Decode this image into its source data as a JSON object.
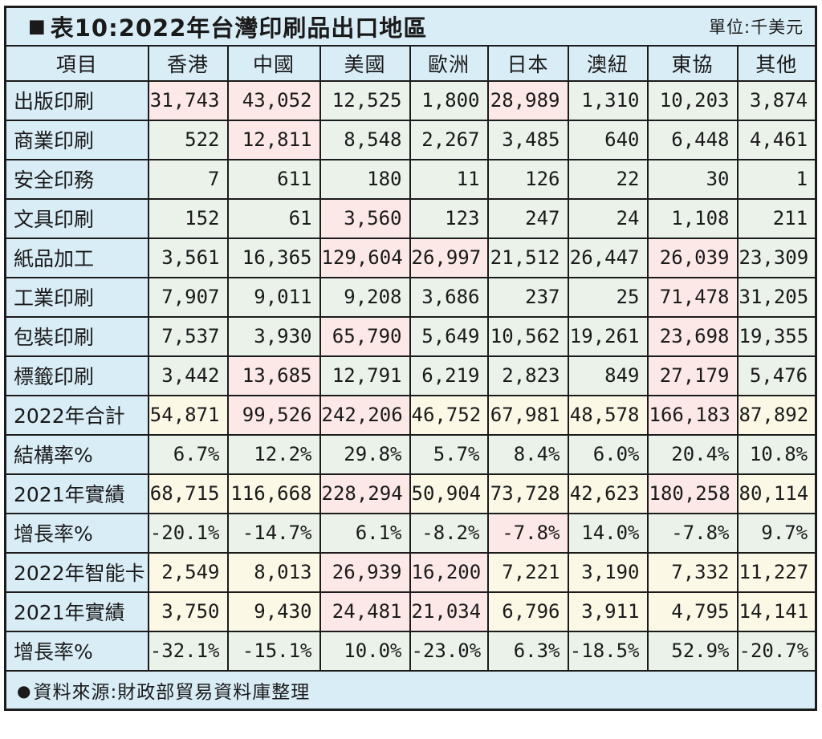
{
  "header": {
    "marker": "■",
    "title": "表10:2022年台灣印刷品出口地區",
    "unit": "單位:千美元"
  },
  "chart_data": {
    "type": "table",
    "title": "2022年台灣印刷品出口地區",
    "unit": "千美元",
    "columns": [
      "項目",
      "香港",
      "中國",
      "美國",
      "歐洲",
      "日本",
      "澳紐",
      "東協",
      "其他"
    ],
    "rows": [
      {
        "label": "出版印刷",
        "bg": "green",
        "pink": [
          0,
          1,
          4
        ],
        "values": [
          "31,743",
          "43,052",
          "12,525",
          "1,800",
          "28,989",
          "1,310",
          "10,203",
          "3,874"
        ]
      },
      {
        "label": "商業印刷",
        "bg": "green",
        "pink": [
          1
        ],
        "values": [
          "522",
          "12,811",
          "8,548",
          "2,267",
          "3,485",
          "640",
          "6,448",
          "4,461"
        ]
      },
      {
        "label": "安全印務",
        "bg": "green",
        "pink": [],
        "values": [
          "7",
          "611",
          "180",
          "11",
          "126",
          "22",
          "30",
          "1"
        ]
      },
      {
        "label": "文具印刷",
        "bg": "green",
        "pink": [
          2
        ],
        "values": [
          "152",
          "61",
          "3,560",
          "123",
          "247",
          "24",
          "1,108",
          "211"
        ]
      },
      {
        "label": "紙品加工",
        "bg": "green",
        "pink": [
          2,
          3,
          6
        ],
        "values": [
          "3,561",
          "16,365",
          "129,604",
          "26,997",
          "21,512",
          "26,447",
          "26,039",
          "23,309"
        ]
      },
      {
        "label": "工業印刷",
        "bg": "green",
        "pink": [
          6
        ],
        "values": [
          "7,907",
          "9,011",
          "9,208",
          "3,686",
          "237",
          "25",
          "71,478",
          "31,205"
        ]
      },
      {
        "label": "包裝印刷",
        "bg": "green",
        "pink": [
          2,
          6
        ],
        "values": [
          "7,537",
          "3,930",
          "65,790",
          "5,649",
          "10,562",
          "19,261",
          "23,698",
          "19,355"
        ]
      },
      {
        "label": "標籤印刷",
        "bg": "green",
        "pink": [
          1,
          6
        ],
        "values": [
          "3,442",
          "13,685",
          "12,791",
          "6,219",
          "2,823",
          "849",
          "27,179",
          "5,476"
        ]
      },
      {
        "label": "2022年合計",
        "bg": "cream",
        "pink": [
          1,
          2,
          6
        ],
        "values": [
          "54,871",
          "99,526",
          "242,206",
          "46,752",
          "67,981",
          "48,578",
          "166,183",
          "87,892"
        ]
      },
      {
        "label": "結構率%",
        "bg": "green",
        "pink": [],
        "values": [
          "6.7%",
          "12.2%",
          "29.8%",
          "5.7%",
          "8.4%",
          "6.0%",
          "20.4%",
          "10.8%"
        ]
      },
      {
        "label": "2021年實績",
        "bg": "cream",
        "pink": [
          2,
          6
        ],
        "values": [
          "68,715",
          "116,668",
          "228,294",
          "50,904",
          "73,728",
          "42,623",
          "180,258",
          "80,114"
        ]
      },
      {
        "label": "增長率%",
        "bg": "green",
        "pink": [
          4
        ],
        "values": [
          "-20.1%",
          "-14.7%",
          "6.1%",
          "-8.2%",
          "-7.8%",
          "14.0%",
          "-7.8%",
          "9.7%"
        ]
      },
      {
        "label": "2022年智能卡",
        "bg": "cream",
        "pink": [
          2,
          3
        ],
        "values": [
          "2,549",
          "8,013",
          "26,939",
          "16,200",
          "7,221",
          "3,190",
          "7,332",
          "11,227"
        ]
      },
      {
        "label": "2021年實績",
        "bg": "cream",
        "pink": [
          2,
          3
        ],
        "values": [
          "3,750",
          "9,430",
          "24,481",
          "21,034",
          "6,796",
          "3,911",
          "4,795",
          "14,141"
        ]
      },
      {
        "label": "增長率%",
        "bg": "green",
        "pink": [],
        "values": [
          "-32.1%",
          "-15.1%",
          "10.0%",
          "-23.0%",
          "6.3%",
          "-18.5%",
          "52.9%",
          "-20.7%"
        ]
      }
    ]
  },
  "footer": {
    "bullet": "●",
    "source": "資料來源:財政部貿易資料庫整理"
  },
  "colors": {
    "light_blue": "#d9edf6",
    "pale_green": "#eaf2ea",
    "cream": "#fbf8e6",
    "highlight_pink": "#fce8e6",
    "border": "#1c1c1c",
    "text": "#1a1a1a"
  }
}
